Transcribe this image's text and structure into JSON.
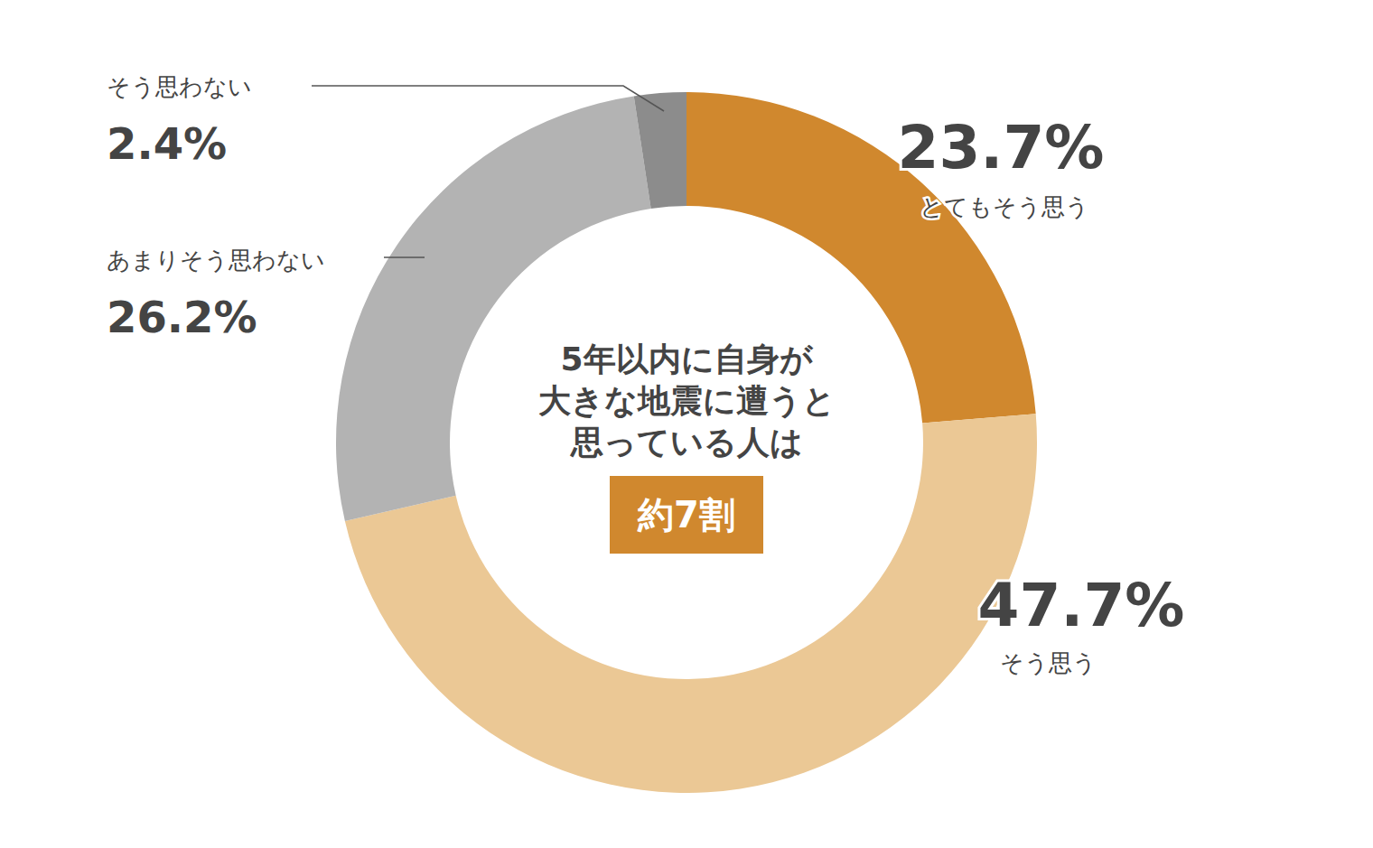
{
  "chart_data": {
    "type": "pie",
    "title": [
      "5年以内に自身が",
      "大きな地震に遭うと",
      "思っている人は"
    ],
    "annotation": "約7割",
    "categories": [
      "とてもそう思う",
      "そう思う",
      "あまりそう思わない",
      "そう思わない"
    ],
    "values": [
      23.7,
      47.7,
      26.2,
      2.4
    ],
    "value_labels": [
      "23.7%",
      "47.7%",
      "26.2%",
      "2.4%"
    ],
    "colors": [
      "#d0882e",
      "#ebc895",
      "#b3b3b3",
      "#8c8c8c"
    ],
    "data_labels": true
  }
}
